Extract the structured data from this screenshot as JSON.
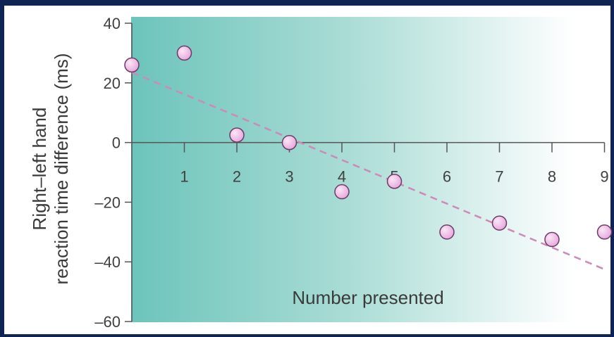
{
  "chart_data": {
    "type": "scatter",
    "title": "",
    "xlabel": "Number presented",
    "ylabel_lines": [
      "Right–left hand",
      "reaction time difference (ms)"
    ],
    "xlim": [
      0,
      9
    ],
    "ylim": [
      -60,
      40
    ],
    "x_ticks": [
      1,
      2,
      3,
      4,
      5,
      6,
      7,
      8,
      9
    ],
    "y_ticks": [
      40,
      20,
      0,
      -20,
      -40,
      -60
    ],
    "y_tick_labels": [
      "40",
      "20",
      "0",
      "–20",
      "–40",
      "–60"
    ],
    "points": [
      {
        "x": 0,
        "y": 26
      },
      {
        "x": 1,
        "y": 30
      },
      {
        "x": 2,
        "y": 2.5
      },
      {
        "x": 3,
        "y": 0
      },
      {
        "x": 4,
        "y": -16.5
      },
      {
        "x": 5,
        "y": -13
      },
      {
        "x": 6,
        "y": -30
      },
      {
        "x": 7,
        "y": -27
      },
      {
        "x": 8,
        "y": -32.5
      },
      {
        "x": 9,
        "y": -30
      }
    ],
    "trendline": {
      "x": [
        0,
        9
      ],
      "y": [
        23.5,
        -42.5
      ],
      "style": "dashed"
    },
    "grid": false,
    "legend": "none"
  },
  "colors": {
    "frame": "#0f2452",
    "gradient_start": "#6cc4bb",
    "gradient_end": "#ffffff",
    "marker_fill": "#e6a6dc",
    "marker_highlight": "#fbe6f6",
    "marker_stroke": "#6b3b66",
    "trendline": "#cc8ab8",
    "axis": "#555555"
  }
}
